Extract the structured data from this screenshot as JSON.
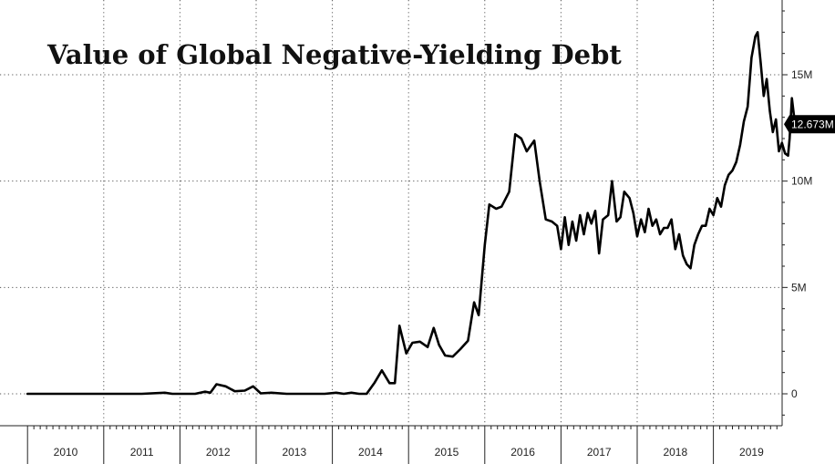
{
  "chart_data": {
    "type": "line",
    "title": "Value of Global Negative-Yielding Debt",
    "xlabel": "",
    "ylabel": "",
    "x_tick_labels": [
      "2010",
      "2011",
      "2012",
      "2013",
      "2014",
      "2015",
      "2016",
      "2017",
      "2018",
      "2019"
    ],
    "y_tick_labels": [
      "0",
      "5M",
      "10M",
      "15M"
    ],
    "y_ticks": [
      0,
      5,
      10,
      15
    ],
    "ylim": [
      -1.5,
      18.5
    ],
    "xlim": [
      2010.0,
      2020.2
    ],
    "grid": true,
    "last_value_label": "12.673M",
    "series": [
      {
        "values_unit": "millions",
        "points": [
          [
            2010.0,
            0.0
          ],
          [
            2010.5,
            0.0
          ],
          [
            2011.0,
            0.0
          ],
          [
            2011.5,
            0.0
          ],
          [
            2011.8,
            0.05
          ],
          [
            2011.9,
            0.0
          ],
          [
            2012.2,
            0.0
          ],
          [
            2012.33,
            0.1
          ],
          [
            2012.4,
            0.05
          ],
          [
            2012.48,
            0.45
          ],
          [
            2012.6,
            0.35
          ],
          [
            2012.72,
            0.12
          ],
          [
            2012.85,
            0.15
          ],
          [
            2012.96,
            0.35
          ],
          [
            2013.06,
            0.02
          ],
          [
            2013.2,
            0.05
          ],
          [
            2013.4,
            0.0
          ],
          [
            2013.7,
            0.0
          ],
          [
            2013.9,
            0.0
          ],
          [
            2014.05,
            0.05
          ],
          [
            2014.15,
            0.0
          ],
          [
            2014.25,
            0.05
          ],
          [
            2014.35,
            0.0
          ],
          [
            2014.45,
            0.0
          ],
          [
            2014.55,
            0.5
          ],
          [
            2014.65,
            1.1
          ],
          [
            2014.75,
            0.5
          ],
          [
            2014.82,
            0.5
          ],
          [
            2014.88,
            3.2
          ],
          [
            2014.97,
            1.9
          ],
          [
            2015.05,
            2.4
          ],
          [
            2015.15,
            2.45
          ],
          [
            2015.25,
            2.2
          ],
          [
            2015.33,
            3.1
          ],
          [
            2015.4,
            2.3
          ],
          [
            2015.48,
            1.8
          ],
          [
            2015.58,
            1.75
          ],
          [
            2015.68,
            2.1
          ],
          [
            2015.78,
            2.5
          ],
          [
            2015.86,
            4.3
          ],
          [
            2015.92,
            3.7
          ],
          [
            2016.0,
            7.0
          ],
          [
            2016.06,
            8.9
          ],
          [
            2016.15,
            8.7
          ],
          [
            2016.22,
            8.8
          ],
          [
            2016.32,
            9.5
          ],
          [
            2016.4,
            12.2
          ],
          [
            2016.48,
            12.0
          ],
          [
            2016.55,
            11.4
          ],
          [
            2016.65,
            11.9
          ],
          [
            2016.72,
            10.0
          ],
          [
            2016.8,
            8.2
          ],
          [
            2016.88,
            8.1
          ],
          [
            2016.95,
            7.9
          ],
          [
            2017.0,
            6.8
          ],
          [
            2017.05,
            8.3
          ],
          [
            2017.1,
            7.0
          ],
          [
            2017.15,
            8.1
          ],
          [
            2017.2,
            7.2
          ],
          [
            2017.25,
            8.4
          ],
          [
            2017.3,
            7.5
          ],
          [
            2017.35,
            8.5
          ],
          [
            2017.4,
            8.0
          ],
          [
            2017.45,
            8.6
          ],
          [
            2017.5,
            6.6
          ],
          [
            2017.55,
            8.2
          ],
          [
            2017.62,
            8.4
          ],
          [
            2017.67,
            10.0
          ],
          [
            2017.73,
            8.1
          ],
          [
            2017.78,
            8.3
          ],
          [
            2017.83,
            9.5
          ],
          [
            2017.9,
            9.2
          ],
          [
            2017.95,
            8.5
          ],
          [
            2018.0,
            7.4
          ],
          [
            2018.05,
            8.2
          ],
          [
            2018.1,
            7.6
          ],
          [
            2018.15,
            8.7
          ],
          [
            2018.2,
            7.9
          ],
          [
            2018.25,
            8.2
          ],
          [
            2018.3,
            7.5
          ],
          [
            2018.35,
            7.8
          ],
          [
            2018.4,
            7.8
          ],
          [
            2018.45,
            8.2
          ],
          [
            2018.5,
            6.8
          ],
          [
            2018.55,
            7.5
          ],
          [
            2018.6,
            6.5
          ],
          [
            2018.65,
            6.1
          ],
          [
            2018.7,
            5.9
          ],
          [
            2018.75,
            7.0
          ],
          [
            2018.8,
            7.5
          ],
          [
            2018.85,
            7.9
          ],
          [
            2018.9,
            7.9
          ],
          [
            2018.95,
            8.7
          ],
          [
            2019.0,
            8.4
          ],
          [
            2019.05,
            9.2
          ],
          [
            2019.1,
            8.8
          ],
          [
            2019.15,
            9.8
          ],
          [
            2019.2,
            10.3
          ],
          [
            2019.25,
            10.5
          ],
          [
            2019.3,
            10.9
          ],
          [
            2019.35,
            11.7
          ],
          [
            2019.4,
            12.8
          ],
          [
            2019.45,
            13.5
          ],
          [
            2019.5,
            15.8
          ],
          [
            2019.55,
            16.8
          ],
          [
            2019.58,
            17.0
          ],
          [
            2019.62,
            15.6
          ],
          [
            2019.66,
            14.0
          ],
          [
            2019.7,
            14.8
          ],
          [
            2019.74,
            13.3
          ],
          [
            2019.78,
            12.3
          ],
          [
            2019.82,
            12.9
          ],
          [
            2019.86,
            11.4
          ],
          [
            2019.9,
            11.8
          ],
          [
            2019.94,
            11.3
          ],
          [
            2019.98,
            11.2
          ],
          [
            2020.0,
            12.0
          ],
          [
            2020.03,
            13.9
          ],
          [
            2020.07,
            12.673
          ]
        ]
      }
    ]
  }
}
